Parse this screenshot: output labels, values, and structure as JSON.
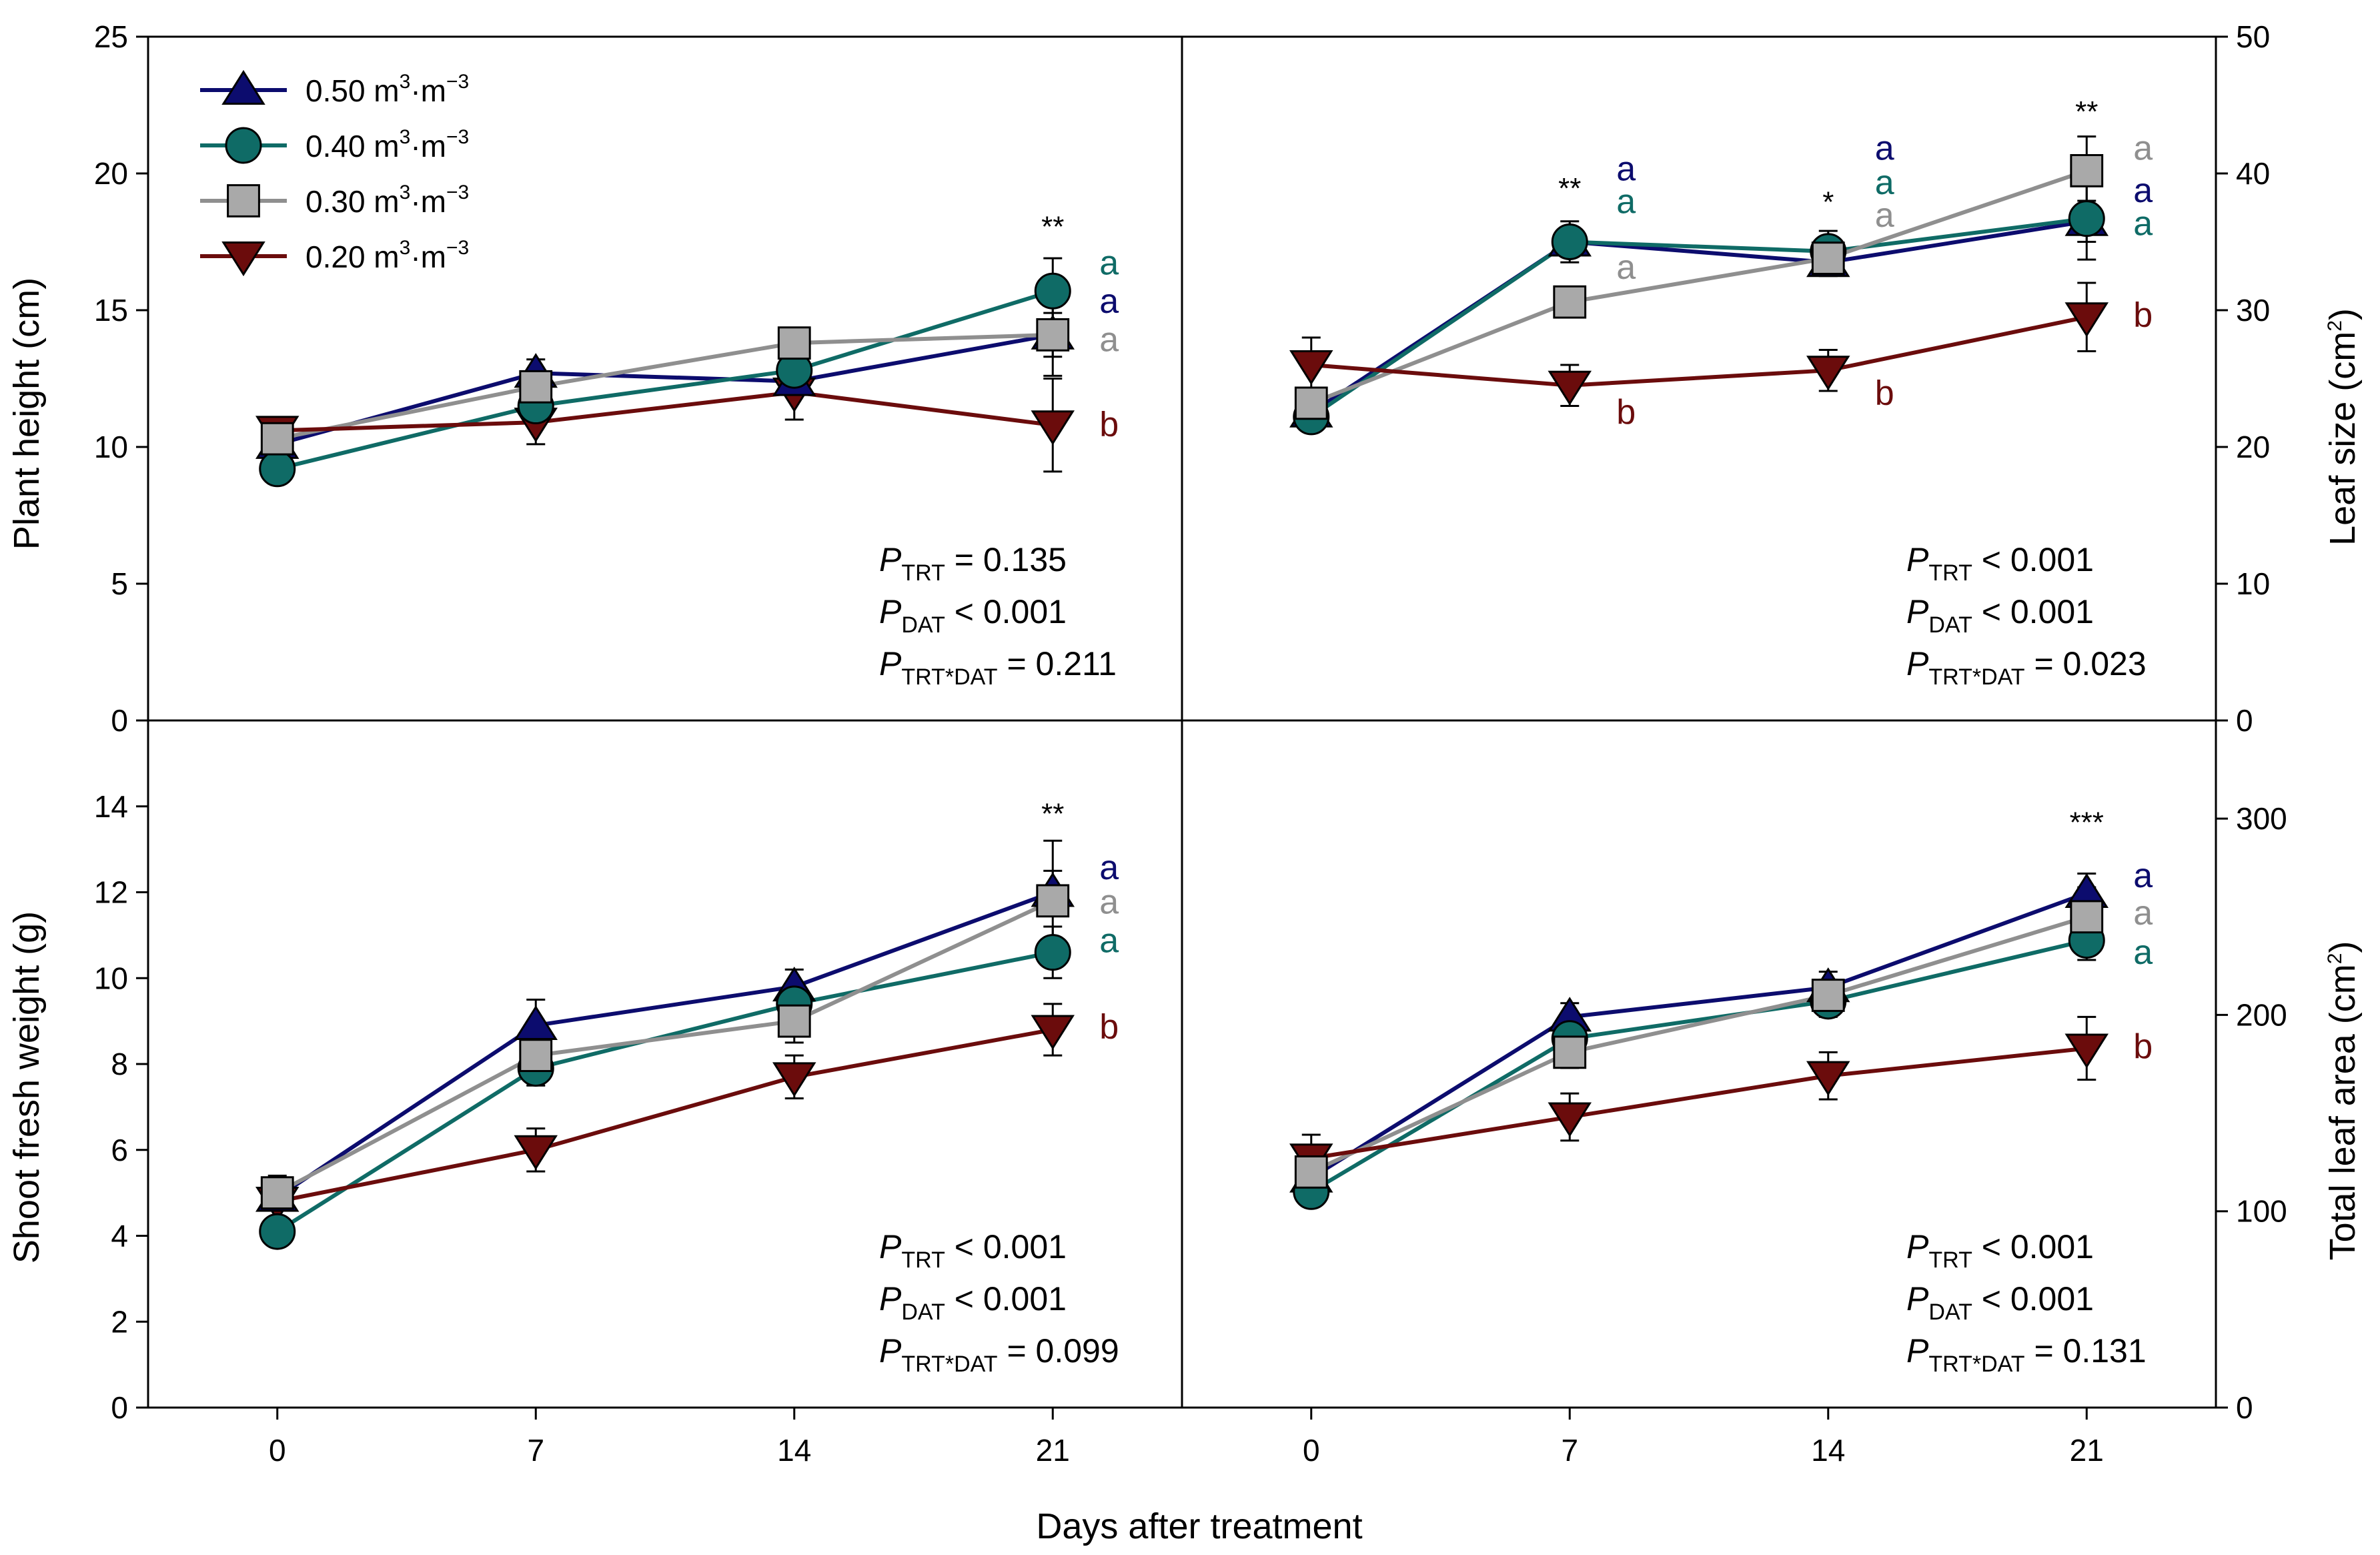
{
  "chart_data": [
    {
      "type": "line",
      "panel": "top-left",
      "ylabel": "Plant height (cm)",
      "y_axis_side": "left",
      "ylim": [
        0,
        25
      ],
      "yticks": [
        0,
        5,
        10,
        15,
        20,
        25
      ],
      "xlim": [
        -3.5,
        24.5
      ],
      "xticks": [
        0,
        7,
        14,
        21
      ],
      "x": [
        0,
        7,
        14,
        21
      ],
      "series": [
        {
          "name": "0.50 m3·m-3",
          "values": [
            10.1,
            12.7,
            12.4,
            14.1
          ],
          "errors": [
            0.3,
            0.5,
            0.5,
            0.8
          ]
        },
        {
          "name": "0.40 m3·m-3",
          "values": [
            9.2,
            11.5,
            12.8,
            15.7
          ],
          "errors": [
            0.3,
            0.4,
            0.5,
            1.2
          ]
        },
        {
          "name": "0.30 m3·m-3",
          "values": [
            10.3,
            12.2,
            13.8,
            14.1
          ],
          "errors": [
            0.3,
            0.4,
            0.4,
            1.5
          ]
        },
        {
          "name": "0.20 m3·m-3",
          "values": [
            10.6,
            10.9,
            12.0,
            10.8
          ],
          "errors": [
            0.4,
            0.8,
            1.0,
            1.7
          ]
        }
      ],
      "significance": {
        "x": 21,
        "stars": "**",
        "y": 17.7
      },
      "letters": {
        "x": 21,
        "items": [
          {
            "series": 1,
            "text": "a",
            "y": 16.3
          },
          {
            "series": 0,
            "text": "a",
            "y": 14.9
          },
          {
            "series": 2,
            "text": "a",
            "y": 13.5
          },
          {
            "series": 3,
            "text": "b",
            "y": 10.4
          }
        ]
      },
      "stats": {
        "p_trt": "=  0.135",
        "p_dat": "< 0.001",
        "p_int": "= 0.211"
      }
    },
    {
      "type": "line",
      "panel": "top-right",
      "ylabel": "Leaf size (cm2)",
      "y_axis_side": "right",
      "ylim": [
        0,
        50
      ],
      "yticks": [
        0,
        10,
        20,
        30,
        40,
        50
      ],
      "xlim": [
        -3.5,
        24.5
      ],
      "xticks": [
        0,
        7,
        14,
        21
      ],
      "x": [
        0,
        7,
        14,
        21
      ],
      "series": [
        {
          "name": "0.50 m3·m-3",
          "values": [
            22.5,
            35.0,
            33.5,
            36.5
          ],
          "errors": [
            1.0,
            1.0,
            1.0,
            1.5
          ]
        },
        {
          "name": "0.40 m3·m-3",
          "values": [
            22.2,
            35.0,
            34.3,
            36.7
          ],
          "errors": [
            1.0,
            1.5,
            1.5,
            3.0
          ]
        },
        {
          "name": "0.30 m3·m-3",
          "values": [
            23.2,
            30.6,
            33.8,
            40.2
          ],
          "errors": [
            1.0,
            1.0,
            1.0,
            2.5
          ]
        },
        {
          "name": "0.20 m3·m-3",
          "values": [
            26.0,
            24.5,
            25.6,
            29.5
          ],
          "errors": [
            2.0,
            1.5,
            1.5,
            2.5
          ]
        }
      ],
      "significance": [
        {
          "x": 7,
          "stars": "**",
          "y": 38.2
        },
        {
          "x": 14,
          "stars": "*",
          "y": 37.2
        },
        {
          "x": 21,
          "stars": "**",
          "y": 43.8
        }
      ],
      "letters": [
        {
          "x": 7,
          "items": [
            {
              "series": 0,
              "text": "a",
              "y": 39.5
            },
            {
              "series": 1,
              "text": "a",
              "y": 37.1
            },
            {
              "series": 2,
              "text": "a",
              "y": 32.3
            },
            {
              "series": 3,
              "text": "b",
              "y": 21.7
            }
          ]
        },
        {
          "x": 14,
          "items": [
            {
              "series": 0,
              "text": "a",
              "y": 41.0
            },
            {
              "series": 1,
              "text": "a",
              "y": 38.5
            },
            {
              "series": 2,
              "text": "a",
              "y": 36.1
            },
            {
              "series": 3,
              "text": "b",
              "y": 23.1
            }
          ]
        },
        {
          "x": 21,
          "items": [
            {
              "series": 2,
              "text": "a",
              "y": 41.0
            },
            {
              "series": 0,
              "text": "a",
              "y": 37.9
            },
            {
              "series": 1,
              "text": "a",
              "y": 35.5
            },
            {
              "series": 3,
              "text": "b",
              "y": 28.8
            }
          ]
        }
      ],
      "stats": {
        "p_trt": "< 0.001",
        "p_dat": "< 0.001",
        "p_int": "= 0.023"
      }
    },
    {
      "type": "line",
      "panel": "bottom-left",
      "ylabel": "Shoot fresh weight (g)",
      "y_axis_side": "left",
      "ylim": [
        0,
        16
      ],
      "yticks": [
        0,
        2,
        4,
        6,
        8,
        10,
        12,
        14
      ],
      "xlim": [
        -3.5,
        24.5
      ],
      "xticks": [
        0,
        7,
        14,
        21
      ],
      "x": [
        0,
        7,
        14,
        21
      ],
      "series": [
        {
          "name": "0.50 m3·m-3",
          "values": [
            4.9,
            8.9,
            9.8,
            12.0
          ],
          "errors": [
            0.3,
            0.6,
            0.4,
            0.5
          ]
        },
        {
          "name": "0.40 m3·m-3",
          "values": [
            4.1,
            7.9,
            9.4,
            10.6
          ],
          "errors": [
            0.3,
            0.4,
            0.4,
            0.6
          ]
        },
        {
          "name": "0.30 m3·m-3",
          "values": [
            5.0,
            8.2,
            9.0,
            11.8
          ],
          "errors": [
            0.4,
            0.5,
            0.5,
            1.4
          ]
        },
        {
          "name": "0.20 m3·m-3",
          "values": [
            4.8,
            6.0,
            7.7,
            8.8
          ],
          "errors": [
            0.4,
            0.5,
            0.5,
            0.6
          ]
        }
      ],
      "significance": {
        "x": 21,
        "stars": "**",
        "y": 13.6
      },
      "letters": {
        "x": 21,
        "items": [
          {
            "series": 0,
            "text": "a",
            "y": 12.3
          },
          {
            "series": 2,
            "text": "a",
            "y": 11.5
          },
          {
            "series": 1,
            "text": "a",
            "y": 10.6
          },
          {
            "series": 3,
            "text": "b",
            "y": 8.6
          }
        ]
      },
      "stats": {
        "p_trt": "< 0.001",
        "p_dat": "< 0.001",
        "p_int": "= 0.099"
      }
    },
    {
      "type": "line",
      "panel": "bottom-right",
      "ylabel": "Total leaf area (cm2)",
      "y_axis_side": "right",
      "ylim": [
        0,
        350
      ],
      "yticks": [
        0,
        100,
        200,
        300
      ],
      "xlim": [
        -3.5,
        24.5
      ],
      "xticks": [
        0,
        7,
        14,
        21
      ],
      "x": [
        0,
        7,
        14,
        21
      ],
      "series": [
        {
          "name": "0.50 m3·m-3",
          "values": [
            117,
            199,
            214,
            262
          ],
          "errors": [
            6,
            7,
            8,
            10
          ]
        },
        {
          "name": "0.40 m3·m-3",
          "values": [
            110,
            188,
            207,
            238
          ],
          "errors": [
            6,
            7,
            8,
            10
          ]
        },
        {
          "name": "0.30 m3·m-3",
          "values": [
            120,
            181,
            210,
            250
          ],
          "errors": [
            6,
            8,
            8,
            15
          ]
        },
        {
          "name": "0.20 m3·m-3",
          "values": [
            127,
            148,
            169,
            183
          ],
          "errors": [
            12,
            12,
            12,
            16
          ]
        }
      ],
      "significance": {
        "x": 21,
        "stars": "***",
        "y": 293
      },
      "letters": {
        "x": 21,
        "items": [
          {
            "series": 0,
            "text": "a",
            "y": 265
          },
          {
            "series": 2,
            "text": "a",
            "y": 246
          },
          {
            "series": 1,
            "text": "a",
            "y": 226
          },
          {
            "series": 3,
            "text": "b",
            "y": 178
          }
        ]
      },
      "stats": {
        "p_trt": "< 0.001",
        "p_dat": "< 0.001",
        "p_int": "= 0.131"
      }
    }
  ],
  "figure": {
    "xlabel": "Days after treatment",
    "legend": {
      "placement": "top-left",
      "items": [
        {
          "value": "0.50",
          "unit_base": "m",
          "unit_exp1": "3",
          "unit_sep": "·m",
          "unit_exp2": "−3",
          "marker": "triangle-up"
        },
        {
          "value": "0.40",
          "unit_base": "m",
          "unit_exp1": "3",
          "unit_sep": "·m",
          "unit_exp2": "−3",
          "marker": "circle"
        },
        {
          "value": "0.30",
          "unit_base": "m",
          "unit_exp1": "3",
          "unit_sep": "·m",
          "unit_exp2": "−3",
          "marker": "square"
        },
        {
          "value": "0.20",
          "unit_base": "m",
          "unit_exp1": "3",
          "unit_sep": "·m",
          "unit_exp2": "−3",
          "marker": "triangle-down"
        }
      ]
    },
    "labels": {
      "plant_height": "Plant height (cm)",
      "leaf_size_base": "Leaf size (cm",
      "leaf_size_exp": "2",
      "leaf_size_close": ")",
      "shoot_weight": "Shoot fresh weight (g)",
      "leaf_area_base": "Total leaf area (cm",
      "leaf_area_exp": "2",
      "leaf_area_close": ")"
    },
    "stat_symbols": {
      "p": "P",
      "trt": "TRT",
      "dat": "DAT",
      "int": "TRT*DAT"
    },
    "colors": {
      "s050": "#0c0c6e",
      "s040": "#0f6b66",
      "s030": "#8f8f8f",
      "s020": "#6b0c0c",
      "fill050": "#0c0c6e",
      "fill040": "#0f6b66",
      "fill030": "#a9a9a9",
      "fill020": "#6b0c0c"
    }
  }
}
